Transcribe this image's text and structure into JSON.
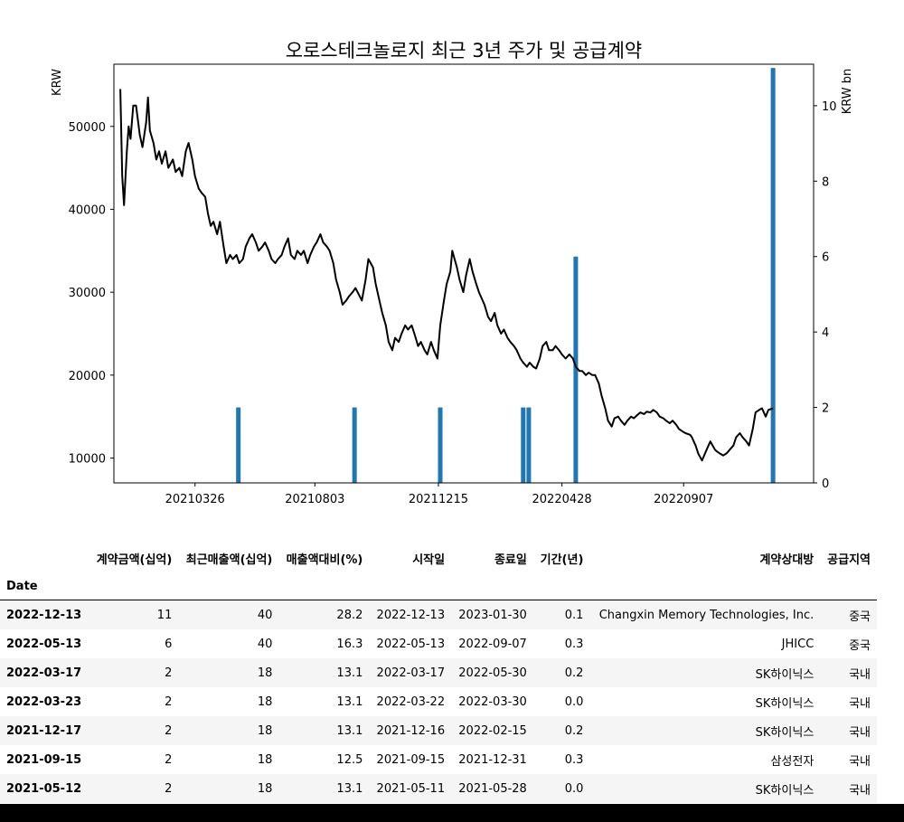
{
  "chart_data": {
    "type": "line+bar",
    "title": "오로스테크놀로지 최근 3년 주가 및 공급계약",
    "ylabel_left": "KRW",
    "ylabel_right": "KRW bn",
    "x_ticks": [
      "20210326",
      "20210803",
      "20211215",
      "20220428",
      "20220907"
    ],
    "y_left_ticks": [
      10000,
      20000,
      30000,
      40000,
      50000
    ],
    "y_left_range": [
      7000,
      57500
    ],
    "y_right_ticks": [
      0,
      2,
      4,
      6,
      8,
      10
    ],
    "y_right_range": [
      0,
      11.1
    ],
    "x_range": [
      "2020-12-28",
      "2023-01-26"
    ],
    "line_color": "#000000",
    "bar_color": "#1f77b4",
    "price_series": {
      "name": "Close",
      "points": [
        [
          "2021-01-04",
          54500
        ],
        [
          "2021-01-06",
          44000
        ],
        [
          "2021-01-08",
          40500
        ],
        [
          "2021-01-11",
          47000
        ],
        [
          "2021-01-13",
          50000
        ],
        [
          "2021-01-15",
          48500
        ],
        [
          "2021-01-18",
          52500
        ],
        [
          "2021-01-21",
          52500
        ],
        [
          "2021-01-25",
          49000
        ],
        [
          "2021-01-28",
          47500
        ],
        [
          "2021-02-01",
          50500
        ],
        [
          "2021-02-03",
          53500
        ],
        [
          "2021-02-05",
          49500
        ],
        [
          "2021-02-09",
          48000
        ],
        [
          "2021-02-12",
          46000
        ],
        [
          "2021-02-15",
          47000
        ],
        [
          "2021-02-18",
          45500
        ],
        [
          "2021-02-22",
          47000
        ],
        [
          "2021-02-25",
          45000
        ],
        [
          "2021-03-02",
          46000
        ],
        [
          "2021-03-05",
          44500
        ],
        [
          "2021-03-09",
          45000
        ],
        [
          "2021-03-12",
          44000
        ],
        [
          "2021-03-16",
          47000
        ],
        [
          "2021-03-19",
          48000
        ],
        [
          "2021-03-23",
          46000
        ],
        [
          "2021-03-26",
          44000
        ],
        [
          "2021-03-30",
          42500
        ],
        [
          "2021-04-02",
          42000
        ],
        [
          "2021-04-06",
          41500
        ],
        [
          "2021-04-09",
          39500
        ],
        [
          "2021-04-12",
          38000
        ],
        [
          "2021-04-15",
          38500
        ],
        [
          "2021-04-19",
          37000
        ],
        [
          "2021-04-22",
          38500
        ],
        [
          "2021-04-26",
          35500
        ],
        [
          "2021-04-29",
          33500
        ],
        [
          "2021-05-03",
          34500
        ],
        [
          "2021-05-06",
          34000
        ],
        [
          "2021-05-10",
          34500
        ],
        [
          "2021-05-13",
          33500
        ],
        [
          "2021-05-17",
          34000
        ],
        [
          "2021-05-20",
          35500
        ],
        [
          "2021-05-24",
          36500
        ],
        [
          "2021-05-27",
          37000
        ],
        [
          "2021-05-31",
          36000
        ],
        [
          "2021-06-03",
          35000
        ],
        [
          "2021-06-07",
          35500
        ],
        [
          "2021-06-10",
          36000
        ],
        [
          "2021-06-14",
          35000
        ],
        [
          "2021-06-17",
          34000
        ],
        [
          "2021-06-21",
          33500
        ],
        [
          "2021-06-24",
          34000
        ],
        [
          "2021-06-28",
          34500
        ],
        [
          "2021-07-01",
          35500
        ],
        [
          "2021-07-05",
          36500
        ],
        [
          "2021-07-08",
          34500
        ],
        [
          "2021-07-12",
          34000
        ],
        [
          "2021-07-15",
          35000
        ],
        [
          "2021-07-19",
          34500
        ],
        [
          "2021-07-22",
          35000
        ],
        [
          "2021-07-26",
          33500
        ],
        [
          "2021-07-29",
          34500
        ],
        [
          "2021-08-02",
          35500
        ],
        [
          "2021-08-05",
          36000
        ],
        [
          "2021-08-09",
          37000
        ],
        [
          "2021-08-12",
          36000
        ],
        [
          "2021-08-16",
          35500
        ],
        [
          "2021-08-19",
          35000
        ],
        [
          "2021-08-23",
          33500
        ],
        [
          "2021-08-26",
          31500
        ],
        [
          "2021-08-30",
          30000
        ],
        [
          "2021-09-02",
          28500
        ],
        [
          "2021-09-06",
          29000
        ],
        [
          "2021-09-09",
          29500
        ],
        [
          "2021-09-13",
          30000
        ],
        [
          "2021-09-16",
          30500
        ],
        [
          "2021-09-23",
          29000
        ],
        [
          "2021-09-27",
          31500
        ],
        [
          "2021-09-30",
          34000
        ],
        [
          "2021-10-05",
          33000
        ],
        [
          "2021-10-08",
          31000
        ],
        [
          "2021-10-12",
          29000
        ],
        [
          "2021-10-15",
          27500
        ],
        [
          "2021-10-19",
          26000
        ],
        [
          "2021-10-22",
          24000
        ],
        [
          "2021-10-26",
          23000
        ],
        [
          "2021-10-29",
          24500
        ],
        [
          "2021-11-02",
          24000
        ],
        [
          "2021-11-05",
          25000
        ],
        [
          "2021-11-09",
          26000
        ],
        [
          "2021-11-12",
          25500
        ],
        [
          "2021-11-16",
          26000
        ],
        [
          "2021-11-19",
          25000
        ],
        [
          "2021-11-23",
          23500
        ],
        [
          "2021-11-26",
          24000
        ],
        [
          "2021-11-30",
          23000
        ],
        [
          "2021-12-03",
          22500
        ],
        [
          "2021-12-07",
          24000
        ],
        [
          "2021-12-10",
          23000
        ],
        [
          "2021-12-14",
          22000
        ],
        [
          "2021-12-17",
          26000
        ],
        [
          "2021-12-21",
          29000
        ],
        [
          "2021-12-24",
          31000
        ],
        [
          "2021-12-28",
          32500
        ],
        [
          "2021-12-30",
          35000
        ],
        [
          "2022-01-04",
          33000
        ],
        [
          "2022-01-07",
          31500
        ],
        [
          "2022-01-11",
          30000
        ],
        [
          "2022-01-14",
          32000
        ],
        [
          "2022-01-18",
          34000
        ],
        [
          "2022-01-21",
          32500
        ],
        [
          "2022-01-25",
          31000
        ],
        [
          "2022-01-28",
          30000
        ],
        [
          "2022-02-03",
          28500
        ],
        [
          "2022-02-07",
          27000
        ],
        [
          "2022-02-10",
          26500
        ],
        [
          "2022-02-14",
          27500
        ],
        [
          "2022-02-17",
          26000
        ],
        [
          "2022-02-21",
          25000
        ],
        [
          "2022-02-24",
          25500
        ],
        [
          "2022-02-28",
          24500
        ],
        [
          "2022-03-03",
          24000
        ],
        [
          "2022-03-07",
          23500
        ],
        [
          "2022-03-10",
          23000
        ],
        [
          "2022-03-14",
          22000
        ],
        [
          "2022-03-17",
          21500
        ],
        [
          "2022-03-21",
          21000
        ],
        [
          "2022-03-24",
          21500
        ],
        [
          "2022-03-28",
          21000
        ],
        [
          "2022-03-31",
          20800
        ],
        [
          "2022-04-04",
          22000
        ],
        [
          "2022-04-07",
          23500
        ],
        [
          "2022-04-11",
          24000
        ],
        [
          "2022-04-14",
          23000
        ],
        [
          "2022-04-18",
          23000
        ],
        [
          "2022-04-21",
          23500
        ],
        [
          "2022-04-25",
          23000
        ],
        [
          "2022-04-28",
          22500
        ],
        [
          "2022-05-02",
          22000
        ],
        [
          "2022-05-06",
          22500
        ],
        [
          "2022-05-10",
          22000
        ],
        [
          "2022-05-13",
          21000
        ],
        [
          "2022-05-17",
          20500
        ],
        [
          "2022-05-20",
          20500
        ],
        [
          "2022-05-24",
          20000
        ],
        [
          "2022-05-27",
          20300
        ],
        [
          "2022-05-31",
          20000
        ],
        [
          "2022-06-03",
          20000
        ],
        [
          "2022-06-07",
          19000
        ],
        [
          "2022-06-10",
          17500
        ],
        [
          "2022-06-14",
          16000
        ],
        [
          "2022-06-17",
          14500
        ],
        [
          "2022-06-21",
          13800
        ],
        [
          "2022-06-24",
          14800
        ],
        [
          "2022-06-28",
          15000
        ],
        [
          "2022-07-01",
          14500
        ],
        [
          "2022-07-05",
          14000
        ],
        [
          "2022-07-08",
          14500
        ],
        [
          "2022-07-12",
          15000
        ],
        [
          "2022-07-15",
          14800
        ],
        [
          "2022-07-19",
          15200
        ],
        [
          "2022-07-22",
          15500
        ],
        [
          "2022-07-26",
          15300
        ],
        [
          "2022-07-29",
          15600
        ],
        [
          "2022-08-02",
          15500
        ],
        [
          "2022-08-05",
          15800
        ],
        [
          "2022-08-09",
          15500
        ],
        [
          "2022-08-12",
          15000
        ],
        [
          "2022-08-16",
          14800
        ],
        [
          "2022-08-19",
          14500
        ],
        [
          "2022-08-23",
          14200
        ],
        [
          "2022-08-26",
          14500
        ],
        [
          "2022-08-30",
          14000
        ],
        [
          "2022-09-02",
          13500
        ],
        [
          "2022-09-06",
          13200
        ],
        [
          "2022-09-09",
          13000
        ],
        [
          "2022-09-14",
          12800
        ],
        [
          "2022-09-16",
          12500
        ],
        [
          "2022-09-20",
          11500
        ],
        [
          "2022-09-23",
          10500
        ],
        [
          "2022-09-27",
          9700
        ],
        [
          "2022-09-30",
          10500
        ],
        [
          "2022-10-04",
          11500
        ],
        [
          "2022-10-06",
          12000
        ],
        [
          "2022-10-11",
          11000
        ],
        [
          "2022-10-13",
          10800
        ],
        [
          "2022-10-17",
          10500
        ],
        [
          "2022-10-20",
          10300
        ],
        [
          "2022-10-24",
          10600
        ],
        [
          "2022-10-27",
          11000
        ],
        [
          "2022-10-31",
          11500
        ],
        [
          "2022-11-03",
          12500
        ],
        [
          "2022-11-07",
          13000
        ],
        [
          "2022-11-10",
          12500
        ],
        [
          "2022-11-14",
          12000
        ],
        [
          "2022-11-17",
          11500
        ],
        [
          "2022-11-21",
          13500
        ],
        [
          "2022-11-24",
          15500
        ],
        [
          "2022-11-28",
          15800
        ],
        [
          "2022-12-01",
          16000
        ],
        [
          "2022-12-05",
          15000
        ],
        [
          "2022-12-08",
          15800
        ],
        [
          "2022-12-13",
          16000
        ]
      ]
    },
    "bar_series": {
      "name": "계약금액(십억)",
      "bars": [
        {
          "date": "2021-05-12",
          "value": 2
        },
        {
          "date": "2021-09-15",
          "value": 2
        },
        {
          "date": "2021-12-17",
          "value": 2
        },
        {
          "date": "2022-03-17",
          "value": 2
        },
        {
          "date": "2022-03-23",
          "value": 2
        },
        {
          "date": "2022-05-13",
          "value": 6
        },
        {
          "date": "2022-12-13",
          "value": 11
        }
      ]
    }
  },
  "table": {
    "columns": [
      "계약금액(십억)",
      "최근매출액(십억)",
      "매출액대비(%)",
      "시작일",
      "종료일",
      "기간(년)",
      "계약상대방",
      "공급지역"
    ],
    "index_name": "Date",
    "rows": [
      {
        "date": "2022-12-13",
        "cells": [
          "11",
          "40",
          "28.2",
          "2022-12-13",
          "2023-01-30",
          "0.1",
          "Changxin Memory Technologies, Inc.",
          "중국"
        ]
      },
      {
        "date": "2022-05-13",
        "cells": [
          "6",
          "40",
          "16.3",
          "2022-05-13",
          "2022-09-07",
          "0.3",
          "JHICC",
          "중국"
        ]
      },
      {
        "date": "2022-03-17",
        "cells": [
          "2",
          "18",
          "13.1",
          "2022-03-17",
          "2022-05-30",
          "0.2",
          "SK하이닉스",
          "국내"
        ]
      },
      {
        "date": "2022-03-23",
        "cells": [
          "2",
          "18",
          "13.1",
          "2022-03-22",
          "2022-03-30",
          "0.0",
          "SK하이닉스",
          "국내"
        ]
      },
      {
        "date": "2021-12-17",
        "cells": [
          "2",
          "18",
          "13.1",
          "2021-12-16",
          "2022-02-15",
          "0.2",
          "SK하이닉스",
          "국내"
        ]
      },
      {
        "date": "2021-09-15",
        "cells": [
          "2",
          "18",
          "12.5",
          "2021-09-15",
          "2021-12-31",
          "0.3",
          "삼성전자",
          "국내"
        ]
      },
      {
        "date": "2021-05-12",
        "cells": [
          "2",
          "18",
          "13.1",
          "2021-05-11",
          "2021-05-28",
          "0.0",
          "SK하이닉스",
          "국내"
        ]
      }
    ]
  }
}
